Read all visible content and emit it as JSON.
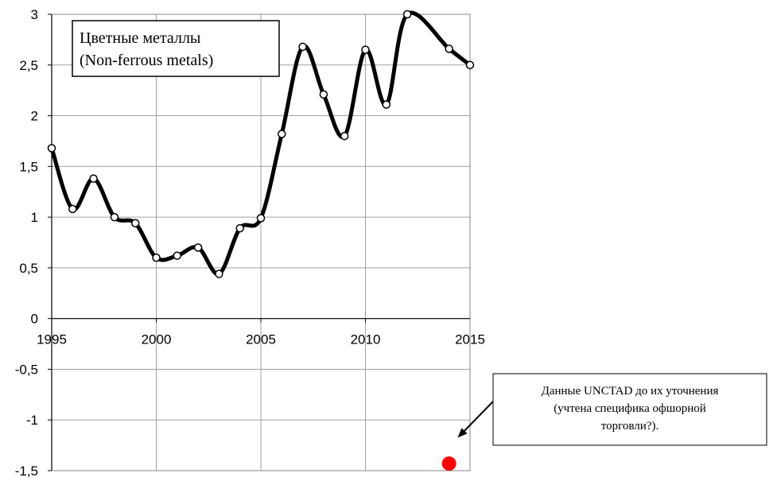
{
  "chart_data": {
    "type": "line",
    "title_lines": [
      "Цветные металлы",
      "(Non-ferrous metals)"
    ],
    "xlabel": "",
    "ylabel": "",
    "xlim": [
      1995,
      2015
    ],
    "ylim": [
      -1.5,
      3
    ],
    "grid": true,
    "x_ticks": [
      1995,
      2000,
      2005,
      2010,
      2015
    ],
    "x_tick_labels": [
      "1995",
      "2000",
      "2005",
      "2010",
      "2015"
    ],
    "y_ticks": [
      3,
      2.5,
      2,
      1.5,
      1,
      0.5,
      0,
      -0.5,
      -1,
      -1.5
    ],
    "y_tick_labels": [
      "3",
      "2,5",
      "2",
      "1,5",
      "1",
      "0,5",
      "0",
      "-0,5",
      "-1",
      "-1,5"
    ],
    "series": [
      {
        "x": [
          1995,
          1996,
          1997,
          1998,
          1999,
          2000,
          2001,
          2002,
          2003,
          2004,
          2005,
          2006,
          2007,
          2008,
          2009,
          2010,
          2011,
          2012,
          2014,
          2015
        ],
        "y": [
          1.68,
          1.08,
          1.38,
          1.0,
          0.94,
          0.6,
          0.62,
          0.7,
          0.44,
          0.89,
          0.99,
          1.82,
          2.68,
          2.21,
          1.8,
          2.65,
          2.11,
          3.0,
          2.66,
          2.5
        ],
        "line_color": "#000000",
        "marker_fill": "#ffffff"
      }
    ],
    "highlight_point": {
      "x": 2014,
      "y": -1.43,
      "color": "#ff0000"
    },
    "annotation": {
      "lines": [
        "Данные UNCTAD до их уточнения",
        "(учтена  специфика офшорной",
        "торговли?)."
      ],
      "target": {
        "x": 2014,
        "y": -1.43
      }
    }
  }
}
